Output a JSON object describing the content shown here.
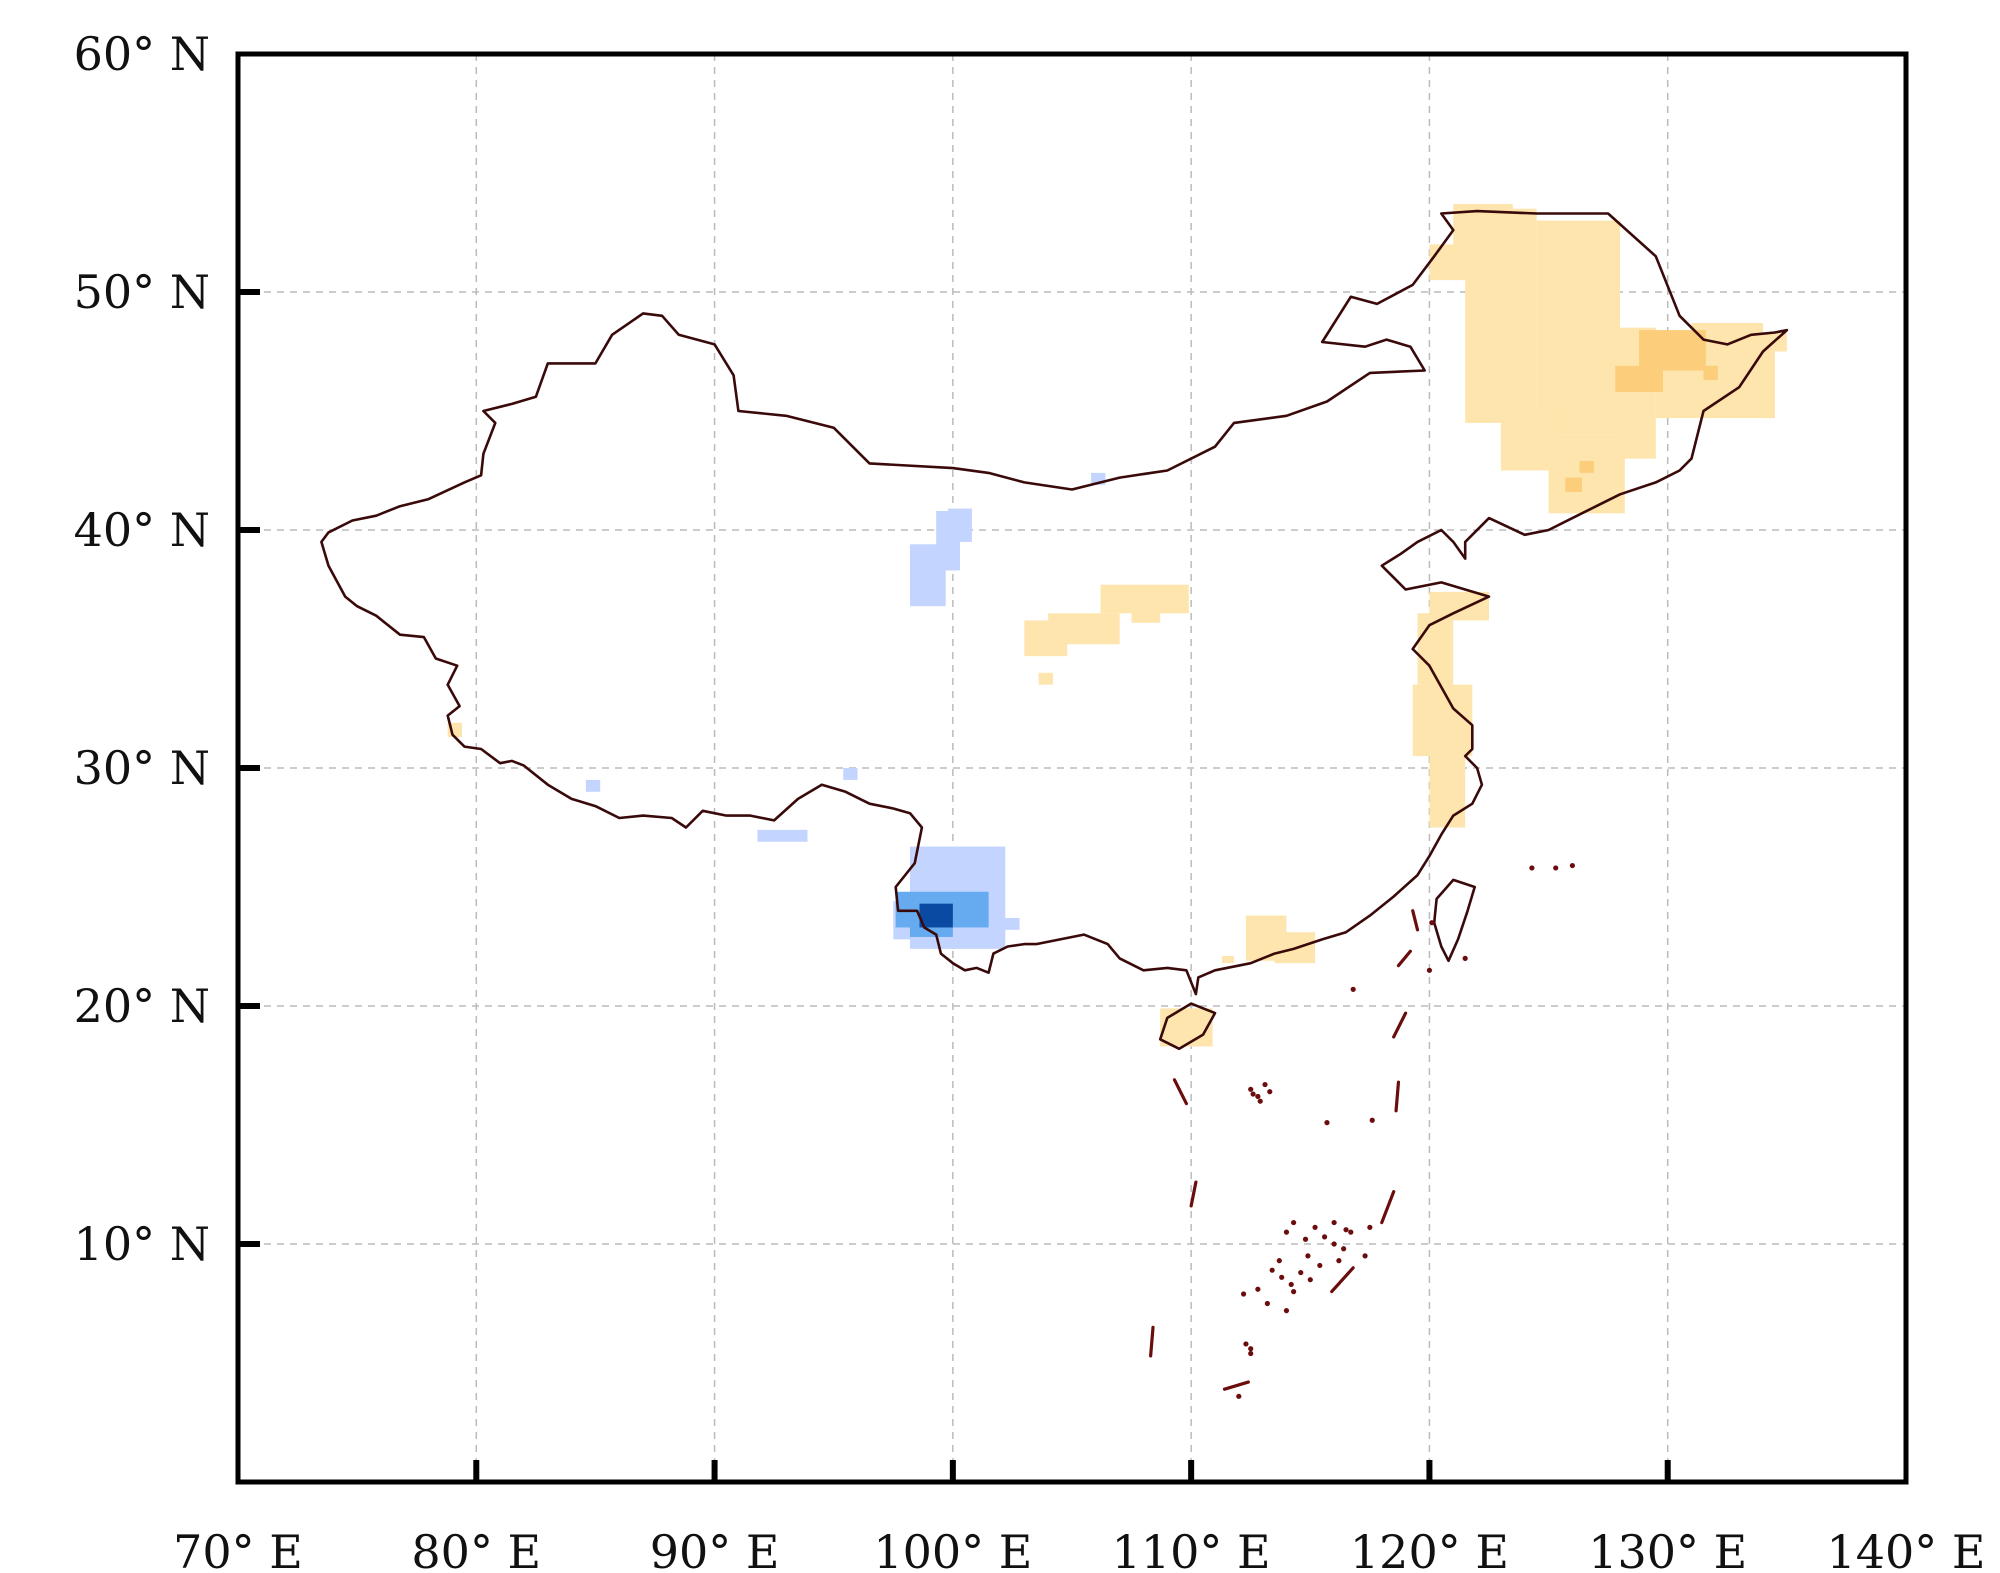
{
  "map": {
    "lon_range": [
      70,
      140
    ],
    "lat_range": [
      0,
      60
    ],
    "gridlines": true,
    "x_ticks": [
      {
        "value": 70,
        "label": "70° E"
      },
      {
        "value": 80,
        "label": "80° E"
      },
      {
        "value": 90,
        "label": "90° E"
      },
      {
        "value": 100,
        "label": "100° E"
      },
      {
        "value": 110,
        "label": "110° E"
      },
      {
        "value": 120,
        "label": "120° E"
      },
      {
        "value": 130,
        "label": "130° E"
      },
      {
        "value": 140,
        "label": "140° E"
      }
    ],
    "y_ticks": [
      {
        "value": 10,
        "label": "10° N"
      },
      {
        "value": 20,
        "label": "20° N"
      },
      {
        "value": 30,
        "label": "30° N"
      },
      {
        "value": 40,
        "label": "40° N"
      },
      {
        "value": 50,
        "label": "50° N"
      },
      {
        "value": 60,
        "label": "60° N"
      }
    ],
    "colors": {
      "border": "#3a0a0a",
      "islands": "#6b0d0d",
      "frame": "#000000",
      "grid": "#bbbbbb",
      "light_orange": "#fde5ad",
      "orange": "#fccd7b",
      "light_blue": "#c3d5ff",
      "blue": "#66aaf0",
      "dark_blue": "#0a4aa3"
    },
    "border": [
      [
        124.5,
        53.3
      ],
      [
        127.5,
        53.3
      ],
      [
        129.5,
        51.5
      ],
      [
        130.5,
        49
      ],
      [
        131.5,
        48
      ],
      [
        132.5,
        47.8
      ],
      [
        133.5,
        48.2
      ],
      [
        134.5,
        48.3
      ],
      [
        135,
        48.4
      ],
      [
        134,
        47.5
      ],
      [
        133,
        46
      ],
      [
        131.5,
        45
      ],
      [
        131,
        43
      ],
      [
        130.5,
        42.5
      ],
      [
        129.5,
        42
      ],
      [
        128,
        41.5
      ],
      [
        127,
        41
      ],
      [
        126,
        40.5
      ],
      [
        125,
        40
      ],
      [
        124,
        39.8
      ],
      [
        122.5,
        40.5
      ],
      [
        121.5,
        39.5
      ],
      [
        121.5,
        38.8
      ],
      [
        121,
        39.5
      ],
      [
        120.5,
        40
      ],
      [
        119.5,
        39.5
      ],
      [
        118.8,
        39
      ],
      [
        118,
        38.5
      ],
      [
        118.5,
        38
      ],
      [
        119,
        37.5
      ],
      [
        120.5,
        37.8
      ],
      [
        122.5,
        37.2
      ],
      [
        121,
        36.5
      ],
      [
        120,
        36
      ],
      [
        119.3,
        35
      ],
      [
        120,
        34.3
      ],
      [
        121,
        32.5
      ],
      [
        121.8,
        31.8
      ],
      [
        121.8,
        30.8
      ],
      [
        121.5,
        30.5
      ],
      [
        122,
        30
      ],
      [
        122.2,
        29.3
      ],
      [
        121.8,
        28.5
      ],
      [
        121,
        28
      ],
      [
        120.5,
        27.2
      ],
      [
        120,
        26.3
      ],
      [
        119.5,
        25.5
      ],
      [
        118.5,
        24.6
      ],
      [
        117.5,
        23.8
      ],
      [
        116.5,
        23.1
      ],
      [
        115.5,
        22.8
      ],
      [
        114.3,
        22.4
      ],
      [
        113.5,
        22.2
      ],
      [
        112.5,
        21.8
      ],
      [
        111,
        21.5
      ],
      [
        110.3,
        21.2
      ],
      [
        110.2,
        20.5
      ],
      [
        109.8,
        21.5
      ],
      [
        109,
        21.6
      ],
      [
        108,
        21.5
      ],
      [
        107,
        22
      ],
      [
        106.5,
        22.6
      ],
      [
        105.5,
        23
      ],
      [
        104.5,
        22.8
      ],
      [
        103.5,
        22.6
      ],
      [
        103,
        22.6
      ],
      [
        102.3,
        22.5
      ],
      [
        101.7,
        22.2
      ],
      [
        101.5,
        21.4
      ],
      [
        101,
        21.6
      ],
      [
        100.5,
        21.5
      ],
      [
        100,
        21.8
      ],
      [
        99.5,
        22.2
      ],
      [
        99.3,
        23
      ],
      [
        98.8,
        23.3
      ],
      [
        98.5,
        24
      ],
      [
        97.7,
        24
      ],
      [
        97.6,
        25
      ],
      [
        98.4,
        26
      ],
      [
        98.7,
        27.5
      ],
      [
        98.2,
        28.1
      ],
      [
        97.5,
        28.3
      ],
      [
        96.5,
        28.5
      ],
      [
        95.5,
        29
      ],
      [
        94.5,
        29.3
      ],
      [
        93.5,
        28.7
      ],
      [
        92.5,
        27.8
      ],
      [
        91.5,
        28
      ],
      [
        90.5,
        28
      ],
      [
        89.5,
        28.2
      ],
      [
        88.8,
        27.5
      ],
      [
        88.2,
        27.9
      ],
      [
        87,
        28
      ],
      [
        86,
        27.9
      ],
      [
        85,
        28.4
      ],
      [
        84,
        28.7
      ],
      [
        83,
        29.3
      ],
      [
        82,
        30.1
      ],
      [
        81.5,
        30.3
      ],
      [
        81,
        30.2
      ],
      [
        80.2,
        30.8
      ],
      [
        79.5,
        30.9
      ],
      [
        79,
        31.4
      ],
      [
        78.8,
        32.2
      ],
      [
        79.3,
        32.6
      ],
      [
        78.8,
        33.5
      ],
      [
        79.2,
        34.3
      ],
      [
        78.3,
        34.6
      ],
      [
        77.8,
        35.5
      ],
      [
        76.8,
        35.6
      ],
      [
        75.8,
        36.4
      ],
      [
        75,
        36.8
      ],
      [
        74.5,
        37.2
      ],
      [
        73.8,
        38.5
      ],
      [
        73.5,
        39.5
      ],
      [
        73.8,
        39.9
      ],
      [
        74.8,
        40.4
      ],
      [
        75.8,
        40.6
      ],
      [
        76.8,
        41
      ],
      [
        78,
        41.3
      ],
      [
        79.5,
        42
      ],
      [
        80.2,
        42.3
      ],
      [
        80.3,
        43.2
      ],
      [
        80.8,
        44.5
      ],
      [
        80.3,
        45
      ],
      [
        81.5,
        45.3
      ],
      [
        82.5,
        45.6
      ],
      [
        83,
        47
      ],
      [
        85,
        47
      ],
      [
        85.7,
        48.2
      ],
      [
        87,
        49.1
      ],
      [
        87.8,
        49
      ],
      [
        88.5,
        48.2
      ],
      [
        90,
        47.8
      ],
      [
        90.8,
        46.5
      ],
      [
        91,
        45
      ],
      [
        93,
        44.8
      ],
      [
        95,
        44.3
      ],
      [
        96.5,
        42.8
      ],
      [
        100,
        42.6
      ],
      [
        101.5,
        42.4
      ],
      [
        103,
        42
      ],
      [
        105,
        41.7
      ],
      [
        107,
        42.2
      ],
      [
        109,
        42.5
      ],
      [
        111,
        43.5
      ],
      [
        111.8,
        44.5
      ],
      [
        114,
        44.8
      ],
      [
        115.7,
        45.4
      ],
      [
        117.5,
        46.6
      ],
      [
        119.8,
        46.7
      ],
      [
        119.2,
        47.7
      ],
      [
        118.2,
        48
      ],
      [
        117.3,
        47.7
      ],
      [
        115.5,
        47.9
      ],
      [
        116.7,
        49.8
      ],
      [
        117.8,
        49.5
      ],
      [
        119.3,
        50.3
      ],
      [
        120.2,
        51.5
      ],
      [
        121,
        52.6
      ],
      [
        120.5,
        53.3
      ],
      [
        122,
        53.4
      ],
      [
        124.5,
        53.3
      ]
    ],
    "taiwan": [
      [
        121.0,
        25.3
      ],
      [
        121.9,
        25.0
      ],
      [
        121.6,
        24.0
      ],
      [
        121.2,
        22.8
      ],
      [
        120.8,
        21.9
      ],
      [
        120.5,
        22.5
      ],
      [
        120.2,
        23.5
      ],
      [
        120.3,
        24.5
      ],
      [
        121.0,
        25.3
      ]
    ],
    "hainan": [
      [
        109.0,
        19.5
      ],
      [
        110.0,
        20.1
      ],
      [
        111.0,
        19.7
      ],
      [
        110.5,
        18.8
      ],
      [
        109.5,
        18.2
      ],
      [
        108.7,
        18.6
      ],
      [
        109.0,
        19.5
      ]
    ],
    "dash_line": [
      [
        [
          119.3,
          24.0
        ],
        [
          119.5,
          23.2
        ]
      ],
      [
        [
          119.2,
          22.3
        ],
        [
          118.7,
          21.7
        ]
      ],
      [
        [
          119.0,
          19.7
        ],
        [
          118.5,
          18.7
        ]
      ],
      [
        [
          118.7,
          16.8
        ],
        [
          118.6,
          15.6
        ]
      ],
      [
        [
          118.5,
          12.2
        ],
        [
          118.0,
          10.9
        ]
      ],
      [
        [
          116.8,
          9.0
        ],
        [
          115.9,
          8.0
        ]
      ],
      [
        [
          111.4,
          3.9
        ],
        [
          112.4,
          4.2
        ]
      ],
      [
        [
          108.4,
          6.5
        ],
        [
          108.3,
          5.3
        ]
      ],
      [
        [
          110.2,
          12.6
        ],
        [
          110.0,
          11.6
        ]
      ],
      [
        [
          109.3,
          16.9
        ],
        [
          109.8,
          15.9
        ]
      ]
    ],
    "cells": {
      "light_orange": [
        [
          121.5,
          44.5,
          3,
          9
        ],
        [
          124.5,
          44,
          3.5,
          9
        ],
        [
          121,
          52,
          2.5,
          1.7
        ],
        [
          120,
          50.5,
          2,
          1.5
        ],
        [
          123,
          42.5,
          2.5,
          2.5
        ],
        [
          125,
          40.7,
          3.2,
          3.3
        ],
        [
          128,
          43,
          1.5,
          5.5
        ],
        [
          129.5,
          44.7,
          5,
          3.2
        ],
        [
          131,
          45.7,
          3,
          3
        ],
        [
          133.2,
          47.5,
          1.8,
          0.8
        ],
        [
          120,
          36.2,
          2.5,
          1.2
        ],
        [
          119.5,
          33.5,
          1.5,
          3
        ],
        [
          120,
          30.5,
          1.8,
          3
        ],
        [
          119.3,
          30.5,
          1.6,
          3
        ],
        [
          120,
          27.5,
          1.5,
          3
        ],
        [
          103,
          34.7,
          1.8,
          1.5
        ],
        [
          104,
          35.2,
          3,
          1.3
        ],
        [
          106.2,
          36.5,
          3.7,
          1.2
        ],
        [
          107.5,
          36.1,
          1.2,
          0.5
        ],
        [
          103.6,
          33.5,
          0.6,
          0.5
        ],
        [
          112.3,
          21.9,
          1.7,
          1.9
        ],
        [
          113.5,
          21.8,
          1.7,
          1.3
        ],
        [
          108.7,
          18.3,
          2.2,
          1.6
        ],
        [
          111.3,
          21.8,
          0.5,
          0.3
        ],
        [
          78.8,
          31.3,
          0.6,
          0.6
        ]
      ],
      "orange": [
        [
          128.8,
          46.7,
          2.8,
          1.7
        ],
        [
          127.8,
          45.8,
          2,
          1.1
        ],
        [
          126.3,
          42.4,
          0.6,
          0.5
        ],
        [
          125.7,
          41.6,
          0.7,
          0.6
        ],
        [
          131.5,
          46.3,
          0.6,
          0.6
        ]
      ],
      "light_blue": [
        [
          99.3,
          38.3,
          1,
          2.5
        ],
        [
          99.8,
          39.5,
          1,
          1.4
        ],
        [
          98.2,
          36.8,
          1.5,
          2.6
        ],
        [
          105.8,
          41.9,
          0.6,
          0.5
        ],
        [
          84.6,
          29.0,
          0.6,
          0.5
        ],
        [
          95.4,
          29.5,
          0.6,
          0.5
        ],
        [
          91.8,
          26.9,
          2.1,
          0.5
        ],
        [
          98.2,
          22.4,
          4,
          4.3
        ],
        [
          97.5,
          22.8,
          1,
          1.6
        ],
        [
          102.1,
          23.2,
          0.7,
          0.5
        ]
      ],
      "blue": [
        [
          97.6,
          23.3,
          3.9,
          1.5
        ],
        [
          98.2,
          22.9,
          1.8,
          0.6
        ]
      ],
      "dark_blue": [
        [
          98.6,
          23.3,
          1.4,
          1.0
        ]
      ]
    },
    "islands": [
      [
        112.5,
        16.5
      ],
      [
        112.8,
        16.2
      ],
      [
        113.1,
        16.7
      ],
      [
        112.9,
        16.0
      ],
      [
        112.6,
        16.3
      ],
      [
        113.3,
        16.4
      ],
      [
        115.7,
        15.1
      ],
      [
        117.6,
        15.2
      ],
      [
        116.8,
        20.7
      ],
      [
        114.0,
        10.5
      ],
      [
        114.3,
        10.9
      ],
      [
        114.8,
        10.2
      ],
      [
        115.2,
        10.7
      ],
      [
        115.6,
        10.3
      ],
      [
        116.0,
        10.0
      ],
      [
        116.4,
        9.8
      ],
      [
        116.7,
        10.5
      ],
      [
        114.9,
        9.5
      ],
      [
        113.4,
        8.9
      ],
      [
        113.8,
        8.6
      ],
      [
        114.2,
        8.3
      ],
      [
        114.6,
        8.8
      ],
      [
        115.0,
        8.5
      ],
      [
        112.8,
        8.1
      ],
      [
        112.2,
        7.9
      ],
      [
        113.2,
        7.5
      ],
      [
        114.0,
        7.2
      ],
      [
        112.5,
        5.6
      ],
      [
        112.3,
        5.8
      ],
      [
        112.5,
        5.4
      ],
      [
        114.3,
        8.0
      ],
      [
        115.4,
        9.1
      ],
      [
        116.0,
        10.9
      ],
      [
        116.5,
        10.6
      ],
      [
        113.7,
        9.3
      ],
      [
        117.5,
        10.7
      ],
      [
        117.3,
        9.5
      ],
      [
        116.2,
        9.3
      ],
      [
        112.0,
        3.6
      ],
      [
        120.1,
        23.5
      ],
      [
        120.0,
        21.5
      ],
      [
        121.5,
        22.0
      ],
      [
        125.3,
        25.8
      ],
      [
        126.0,
        25.9
      ],
      [
        124.3,
        25.8
      ]
    ]
  }
}
